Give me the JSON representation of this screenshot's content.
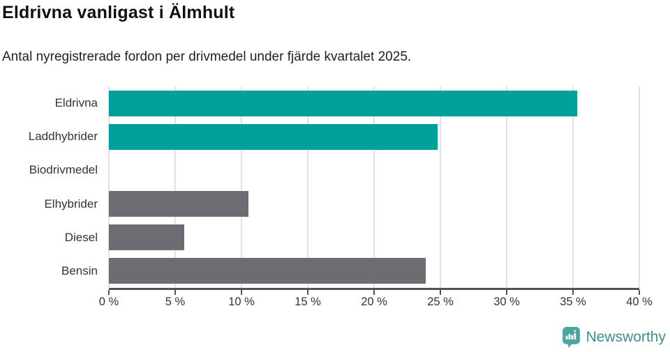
{
  "title": "Eldrivna vanligast i Älmhult",
  "subtitle": "Antal nyregistrerade fordon per drivmedel under fjärde kvartalet 2025.",
  "chart_data": {
    "type": "bar",
    "orientation": "horizontal",
    "title": "Eldrivna vanligast i Älmhult",
    "subtitle": "Antal nyregistrerade fordon per drivmedel under fjärde kvartalet 2025.",
    "categories": [
      "Eldrivna",
      "Laddhybrider",
      "Biodrivmedel",
      "Elhybrider",
      "Diesel",
      "Bensin"
    ],
    "values": [
      35.3,
      24.8,
      0,
      10.5,
      5.7,
      23.9
    ],
    "unit": "%",
    "xlim": [
      0,
      40
    ],
    "x_ticks": [
      0,
      5,
      10,
      15,
      20,
      25,
      30,
      35,
      40
    ],
    "x_tick_labels": [
      "0 %",
      "5 %",
      "10 %",
      "15 %",
      "20 %",
      "25 %",
      "30 %",
      "35 %",
      "40 %"
    ],
    "bar_colors": [
      "#00a09a",
      "#00a09a",
      "#00a09a",
      "#6c6c73",
      "#6c6c73",
      "#6c6c73"
    ],
    "grid": "vertical-only",
    "legend": "none"
  },
  "colors": {
    "highlight_teal": "#00a09a",
    "neutral_gray": "#6c6c73",
    "gridline": "#e2e2e2",
    "axis": "#515156",
    "text": "#333333",
    "logo_icon": "#4ba5a0",
    "logo_text": "#3d8f8b"
  },
  "branding": {
    "logo_text": "Newsworthy",
    "logo_icon": "newsworthy-bar-chart-speech-bubble-icon"
  }
}
